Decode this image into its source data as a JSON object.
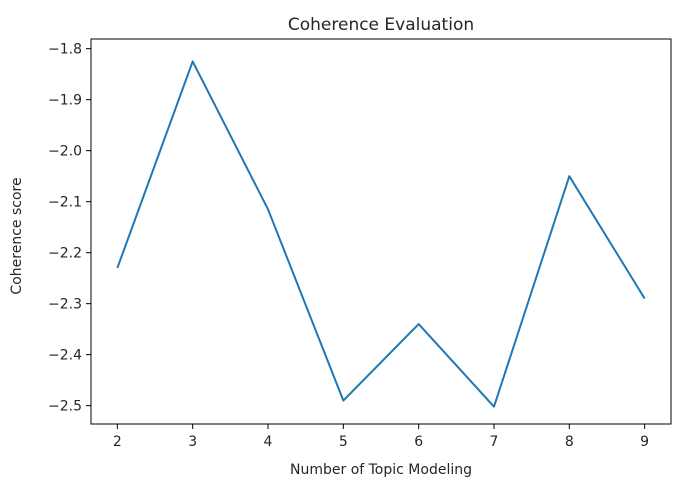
{
  "chart_data": {
    "type": "line",
    "title": "Coherence Evaluation",
    "xlabel": "Number of Topic Modeling",
    "ylabel": "Coherence score",
    "x": [
      2,
      3,
      4,
      5,
      6,
      7,
      8,
      9
    ],
    "series": [
      {
        "values": [
          -2.23,
          -1.825,
          -2.115,
          -2.49,
          -2.34,
          -2.502,
          -2.05,
          -2.29
        ],
        "color": "#1f77b4"
      }
    ],
    "xticks": [
      2,
      3,
      4,
      5,
      6,
      7,
      8,
      9
    ],
    "xtick_labels": [
      "2",
      "3",
      "4",
      "5",
      "6",
      "7",
      "8",
      "9"
    ],
    "yticks": [
      -1.8,
      -1.9,
      -2.0,
      -2.1,
      -2.2,
      -2.3,
      -2.4,
      -2.5
    ],
    "ytick_labels": [
      "−1.8",
      "−1.9",
      "−2.0",
      "−2.1",
      "−2.2",
      "−2.3",
      "−2.4",
      "−2.5"
    ],
    "xlim": [
      1.65,
      9.35
    ],
    "ylim": [
      -2.536,
      -1.781
    ],
    "grid": false,
    "legend": "none"
  }
}
